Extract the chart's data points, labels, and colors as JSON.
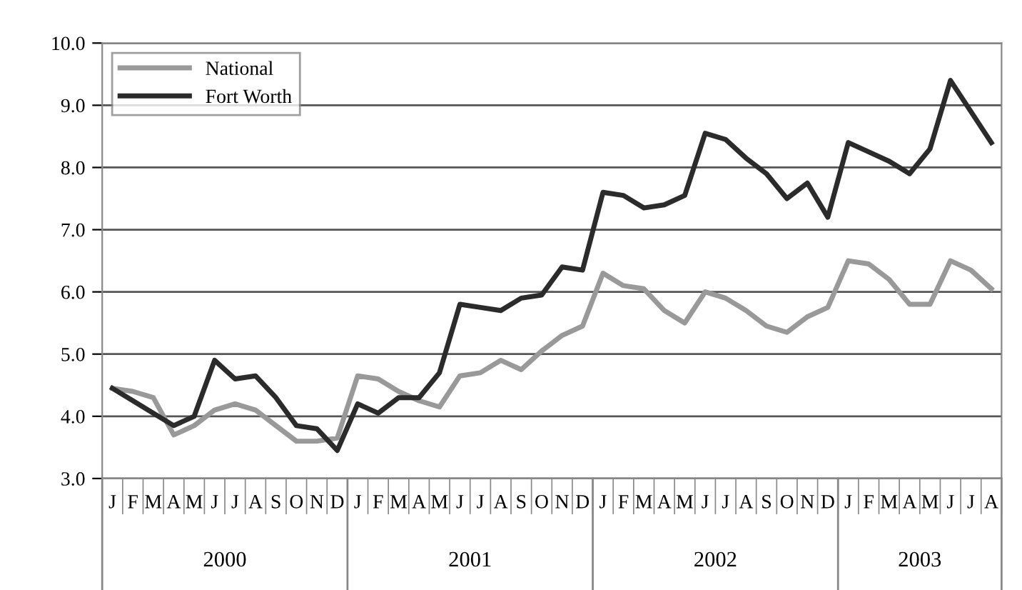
{
  "chart_data": {
    "type": "line",
    "categories": [
      "J",
      "F",
      "M",
      "A",
      "M",
      "J",
      "J",
      "A",
      "S",
      "O",
      "N",
      "D",
      "J",
      "F",
      "M",
      "A",
      "M",
      "J",
      "J",
      "A",
      "S",
      "O",
      "N",
      "D",
      "J",
      "F",
      "M",
      "A",
      "M",
      "J",
      "J",
      "A",
      "S",
      "O",
      "N",
      "D",
      "J",
      "F",
      "M",
      "A",
      "M",
      "J",
      "J",
      "A"
    ],
    "series": [
      {
        "name": "National",
        "color": "#999999",
        "values": [
          4.45,
          4.4,
          4.3,
          3.7,
          3.85,
          4.1,
          4.2,
          4.1,
          3.85,
          3.6,
          3.6,
          3.65,
          4.65,
          4.6,
          4.4,
          4.25,
          4.15,
          4.65,
          4.7,
          4.9,
          4.75,
          5.05,
          5.3,
          5.45,
          6.3,
          6.1,
          6.05,
          5.7,
          5.5,
          6.0,
          5.9,
          5.7,
          5.45,
          5.35,
          5.6,
          5.75,
          6.5,
          6.45,
          6.2,
          5.8,
          5.8,
          6.5,
          6.35,
          6.05
        ]
      },
      {
        "name": "Fort Worth",
        "color": "#2b2b2b",
        "values": [
          4.45,
          4.25,
          4.05,
          3.85,
          4.0,
          4.9,
          4.6,
          4.65,
          4.3,
          3.85,
          3.8,
          3.45,
          4.2,
          4.05,
          4.3,
          4.3,
          4.7,
          5.8,
          5.75,
          5.7,
          5.9,
          5.95,
          6.4,
          6.35,
          7.6,
          7.55,
          7.35,
          7.4,
          7.55,
          8.55,
          8.45,
          8.15,
          7.9,
          7.5,
          7.75,
          7.2,
          8.4,
          8.25,
          8.1,
          7.9,
          8.3,
          9.4,
          8.9,
          8.4
        ]
      }
    ],
    "annotations": [
      "2000",
      "2001",
      "2002",
      "2003"
    ],
    "ylim": [
      3.0,
      10.0
    ],
    "yticks": [
      {
        "value": 3,
        "label": "3.0"
      },
      {
        "value": 4,
        "label": "4.0"
      },
      {
        "value": 5,
        "label": "5.0"
      },
      {
        "value": 6,
        "label": "6.0"
      },
      {
        "value": 7,
        "label": "7.0"
      },
      {
        "value": 8,
        "label": "8.0"
      },
      {
        "value": 9,
        "label": "9.0"
      },
      {
        "value": 10,
        "label": "10.0"
      }
    ],
    "grid": "y",
    "legend": "top left",
    "marker": "none",
    "line_style": "solid"
  }
}
